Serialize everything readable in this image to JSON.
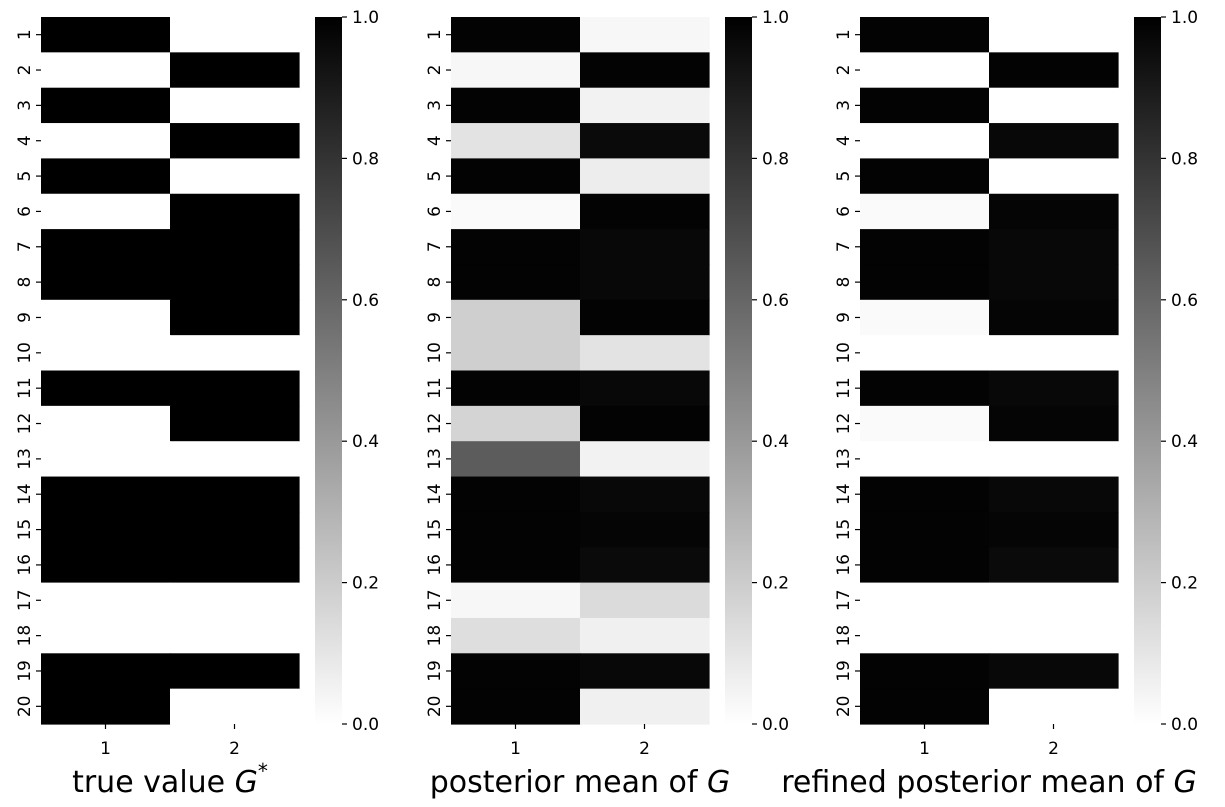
{
  "chart_data": [
    {
      "type": "heatmap",
      "xlabel": "true value ",
      "xlabel_math": "G",
      "xlabel_sup": "*",
      "x_categories": [
        "1",
        "2"
      ],
      "y_categories": [
        "1",
        "2",
        "3",
        "4",
        "5",
        "6",
        "7",
        "8",
        "9",
        "10",
        "11",
        "12",
        "13",
        "14",
        "15",
        "16",
        "17",
        "18",
        "19",
        "20"
      ],
      "values": [
        [
          1,
          0
        ],
        [
          0,
          1
        ],
        [
          1,
          0
        ],
        [
          0,
          1
        ],
        [
          1,
          0
        ],
        [
          0,
          1
        ],
        [
          1,
          1
        ],
        [
          1,
          1
        ],
        [
          0,
          1
        ],
        [
          0,
          0
        ],
        [
          1,
          1
        ],
        [
          0,
          1
        ],
        [
          0,
          0
        ],
        [
          1,
          1
        ],
        [
          1,
          1
        ],
        [
          1,
          1
        ],
        [
          0,
          0
        ],
        [
          0,
          0
        ],
        [
          1,
          1
        ],
        [
          1,
          0
        ]
      ],
      "colorbar": {
        "range": [
          0.0,
          1.0
        ],
        "ticks": [
          "0.0",
          "0.2",
          "0.4",
          "0.6",
          "0.8",
          "1.0"
        ],
        "colormap": "gray_r"
      }
    },
    {
      "type": "heatmap",
      "xlabel": "posterior mean of ",
      "xlabel_math": "G",
      "xlabel_sup": "",
      "x_categories": [
        "1",
        "2"
      ],
      "y_categories": [
        "1",
        "2",
        "3",
        "4",
        "5",
        "6",
        "7",
        "8",
        "9",
        "10",
        "11",
        "12",
        "13",
        "14",
        "15",
        "16",
        "17",
        "18",
        "19",
        "20"
      ],
      "values": [
        [
          0.99,
          0.03
        ],
        [
          0.03,
          0.99
        ],
        [
          0.99,
          0.05
        ],
        [
          0.11,
          0.96
        ],
        [
          0.99,
          0.07
        ],
        [
          0.02,
          0.99
        ],
        [
          0.99,
          0.97
        ],
        [
          0.99,
          0.97
        ],
        [
          0.19,
          0.99
        ],
        [
          0.19,
          0.11
        ],
        [
          0.99,
          0.97
        ],
        [
          0.17,
          0.99
        ],
        [
          0.64,
          0.05
        ],
        [
          0.99,
          0.97
        ],
        [
          0.99,
          0.98
        ],
        [
          0.99,
          0.96
        ],
        [
          0.03,
          0.14
        ],
        [
          0.13,
          0.06
        ],
        [
          0.99,
          0.97
        ],
        [
          0.99,
          0.06
        ]
      ],
      "colorbar": {
        "range": [
          0.0,
          1.0
        ],
        "ticks": [
          "0.0",
          "0.2",
          "0.4",
          "0.6",
          "0.8",
          "1.0"
        ],
        "colormap": "gray_r"
      }
    },
    {
      "type": "heatmap",
      "xlabel": "refined posterior mean of ",
      "xlabel_math": "G",
      "xlabel_sup": "",
      "x_categories": [
        "1",
        "2"
      ],
      "y_categories": [
        "1",
        "2",
        "3",
        "4",
        "5",
        "6",
        "7",
        "8",
        "9",
        "10",
        "11",
        "12",
        "13",
        "14",
        "15",
        "16",
        "17",
        "18",
        "19",
        "20"
      ],
      "values": [
        [
          0.99,
          0.0
        ],
        [
          0.0,
          0.99
        ],
        [
          0.99,
          0.0
        ],
        [
          0.0,
          0.97
        ],
        [
          0.99,
          0.0
        ],
        [
          0.02,
          0.98
        ],
        [
          0.99,
          0.97
        ],
        [
          0.99,
          0.97
        ],
        [
          0.02,
          0.98
        ],
        [
          0.0,
          0.0
        ],
        [
          0.99,
          0.97
        ],
        [
          0.02,
          0.98
        ],
        [
          0.0,
          0.0
        ],
        [
          0.99,
          0.97
        ],
        [
          0.99,
          0.98
        ],
        [
          0.99,
          0.96
        ],
        [
          0.0,
          0.0
        ],
        [
          0.0,
          0.0
        ],
        [
          0.99,
          0.97
        ],
        [
          0.99,
          0.0
        ]
      ],
      "colorbar": {
        "range": [
          0.0,
          1.0
        ],
        "ticks": [
          "0.0",
          "0.2",
          "0.4",
          "0.6",
          "0.8",
          "1.0"
        ],
        "colormap": "gray_r"
      }
    }
  ]
}
